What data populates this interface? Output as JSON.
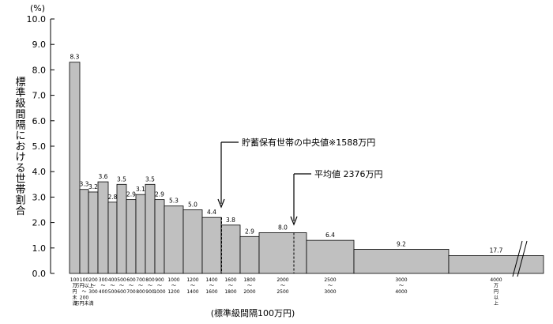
{
  "chart_data": {
    "type": "bar",
    "unit": "(%)",
    "ylabel": "標準級間隔における世帯割合",
    "xlabel": "(標準級間隔100万円)",
    "ylim": [
      0,
      10
    ],
    "y_ticks": [
      "0.0",
      "1.0",
      "2.0",
      "3.0",
      "4.0",
      "5.0",
      "6.0",
      "7.0",
      "8.0",
      "9.0",
      "10.0"
    ],
    "grid": false,
    "series": [
      {
        "values": [
          8.3,
          3.3,
          3.2,
          3.6,
          2.8,
          3.5,
          2.9,
          3.1,
          3.5,
          2.9,
          2.65,
          2.5,
          2.2,
          1.9,
          1.45,
          1.6,
          1.3,
          0.95,
          0.7
        ],
        "interval_labels": [
          "",
          "",
          "",
          "",
          "",
          "",
          "",
          "",
          "",
          "",
          "5.3",
          "5.0",
          "4.4",
          "3.8",
          "2.9",
          "8.0",
          "6.4",
          "9.2",
          "17.7"
        ],
        "x_range_lines": [
          [
            "100",
            "万",
            "円",
            "未",
            "満"
          ],
          [
            "100",
            "万円以上",
            "〜",
            "200",
            "万円未満"
          ],
          [
            "200",
            "〜",
            "300"
          ],
          [
            "300",
            "〜",
            "400"
          ],
          [
            "400",
            "〜",
            "500"
          ],
          [
            "500",
            "〜",
            "600"
          ],
          [
            "600",
            "〜",
            "700"
          ],
          [
            "700",
            "〜",
            "800"
          ],
          [
            "800",
            "〜",
            "900"
          ],
          [
            "900",
            "〜",
            "1000"
          ],
          [
            "1000",
            "〜",
            "1200"
          ],
          [
            "1200",
            "〜",
            "1400"
          ],
          [
            "1400",
            "〜",
            "1600"
          ],
          [
            "1600",
            "〜",
            "1800"
          ],
          [
            "1800",
            "〜",
            "2000"
          ],
          [
            "2000",
            "〜",
            "2500"
          ],
          [
            "2500",
            "〜",
            "3000"
          ],
          [
            "3000",
            "〜",
            "4000"
          ],
          [
            "4000",
            "万",
            "円",
            "以",
            "上"
          ]
        ]
      }
    ],
    "annotations": [
      {
        "text": "貯蓄保有世帯の中央値※1588万円",
        "x_value": 1588
      },
      {
        "text": "平均値 2376万円",
        "x_value": 2376
      }
    ],
    "bar_color": "#c0c0c0"
  }
}
